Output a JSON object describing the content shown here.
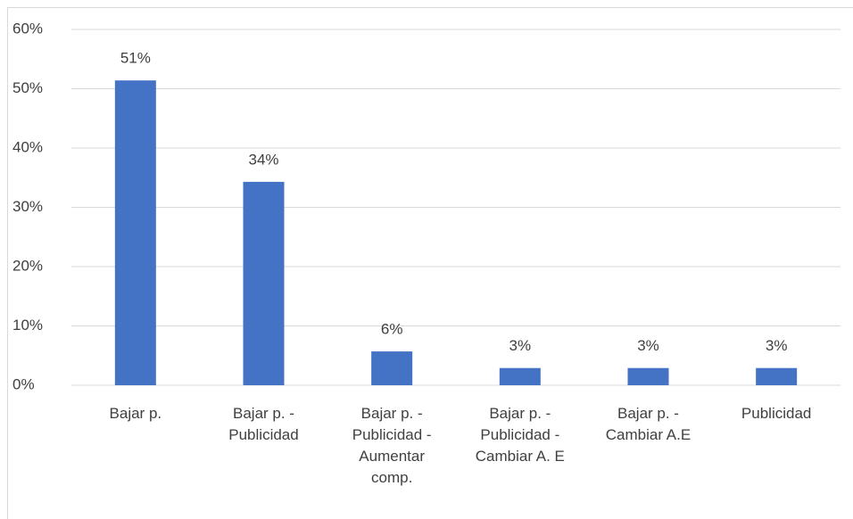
{
  "chart_data": {
    "type": "bar",
    "categories": [
      "Bajar p.",
      "Bajar p. - Publicidad",
      "Bajar p. - Publicidad - Aumentar comp.",
      "Bajar p. - Publicidad - Cambiar A. E",
      "Bajar p. - Cambiar A.E",
      "Publicidad"
    ],
    "values": [
      51.4,
      34.3,
      5.7,
      2.9,
      2.9,
      2.9
    ],
    "value_labels": [
      "51%",
      "34%",
      "6%",
      "3%",
      "3%",
      "3%"
    ],
    "color": "#4472c4",
    "ylim": [
      0,
      60
    ],
    "yticks": [
      {
        "value": 0,
        "label": "0%"
      },
      {
        "value": 10,
        "label": "10%"
      },
      {
        "value": 20,
        "label": "20%"
      },
      {
        "value": 30,
        "label": "30%"
      },
      {
        "value": 40,
        "label": "40%"
      },
      {
        "value": 50,
        "label": "50%"
      },
      {
        "value": 60,
        "label": "60%"
      }
    ],
    "grid": true
  }
}
